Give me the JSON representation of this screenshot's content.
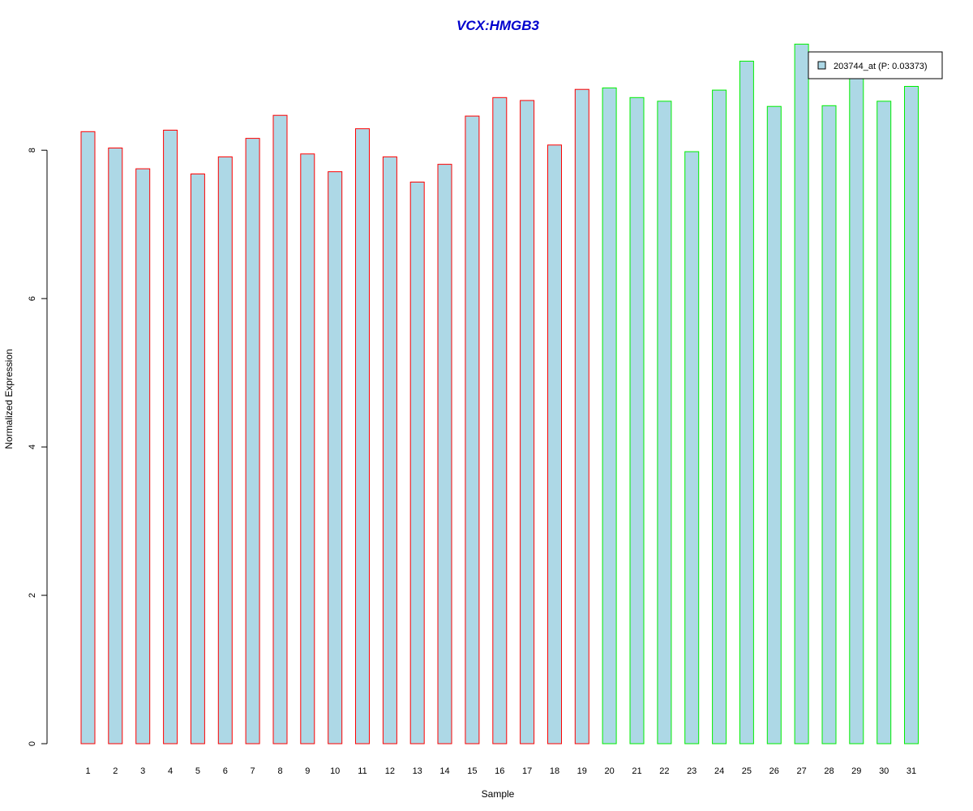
{
  "chart_data": {
    "type": "bar",
    "title": "VCX:HMGB3",
    "xlabel": "Sample",
    "ylabel": "Normalized Expression",
    "ylim": [
      0,
      9.5
    ],
    "yticks": [
      0,
      2,
      4,
      6,
      8
    ],
    "grid": false,
    "legend_position": "top-right",
    "categories": [
      "1",
      "2",
      "3",
      "4",
      "5",
      "6",
      "7",
      "8",
      "9",
      "10",
      "11",
      "12",
      "13",
      "14",
      "15",
      "16",
      "17",
      "18",
      "19",
      "20",
      "21",
      "22",
      "23",
      "24",
      "25",
      "26",
      "27",
      "28",
      "29",
      "30",
      "31"
    ],
    "series": [
      {
        "name": "203744_at (P: 0.03373)",
        "values": [
          8.25,
          8.03,
          7.75,
          8.27,
          7.68,
          7.91,
          8.16,
          8.47,
          7.95,
          7.71,
          8.29,
          7.91,
          7.57,
          7.81,
          8.46,
          8.71,
          8.67,
          8.07,
          8.82,
          8.84,
          8.71,
          8.66,
          7.98,
          8.81,
          9.2,
          8.59,
          9.43,
          8.6,
          8.98,
          8.66,
          8.86
        ],
        "groups": [
          "a",
          "a",
          "a",
          "a",
          "a",
          "a",
          "a",
          "a",
          "a",
          "a",
          "a",
          "a",
          "a",
          "a",
          "a",
          "a",
          "a",
          "a",
          "a",
          "b",
          "b",
          "b",
          "b",
          "b",
          "b",
          "b",
          "b",
          "b",
          "b",
          "b",
          "b"
        ]
      }
    ],
    "colors": {
      "bar_fill": "#add8e6",
      "group_a_border": "#ff0000",
      "group_b_border": "#00ee00",
      "title": "#0000cd",
      "axis": "#000000"
    }
  }
}
